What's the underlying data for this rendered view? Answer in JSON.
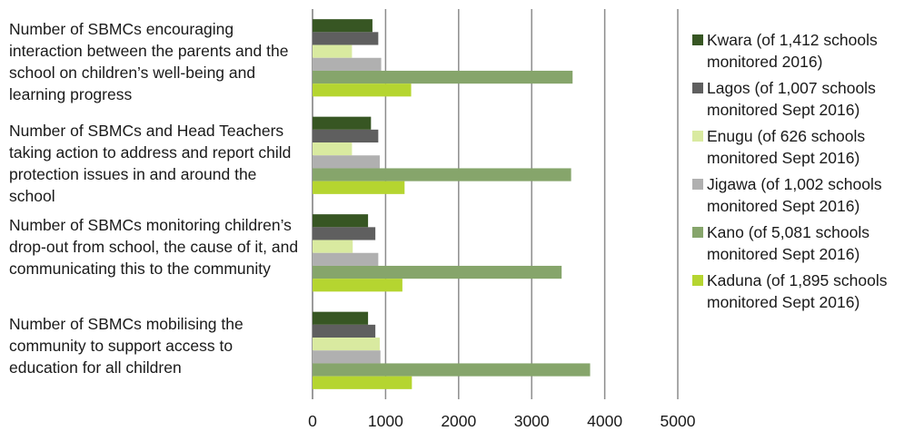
{
  "chart_data": {
    "type": "bar",
    "orientation": "horizontal",
    "categories": [
      "Number of SBMCs encouraging interaction between the parents and the school on children’s well-being and learning progress",
      "Number of SBMCs and Head Teachers taking action to address and report child protection issues in and around the school",
      "Number of SBMCs monitoring children’s drop-out from school, the cause of it, and communicating this to the community",
      "Number of SBMCs mobilising the community to support access to education for all children"
    ],
    "series": [
      {
        "name": "Kwara (of 1,412 schools monitored 2016)",
        "color": "#375623",
        "values": [
          820,
          800,
          760,
          760
        ]
      },
      {
        "name": "Lagos (of 1,007 schools monitored Sept 2016)",
        "color": "#5f5f5f",
        "values": [
          900,
          900,
          860,
          860
        ]
      },
      {
        "name": "Enugu (of 626 schools monitored Sept 2016)",
        "color": "#d9eaa0",
        "values": [
          540,
          540,
          550,
          920
        ]
      },
      {
        "name": "Jigawa (of 1,002 schools monitored Sept 2016)",
        "color": "#b0b0b0",
        "values": [
          940,
          920,
          900,
          930
        ]
      },
      {
        "name": "Kano (of 5,081 schools monitored Sept 2016)",
        "color": "#86a56b",
        "values": [
          3560,
          3540,
          3410,
          3800
        ]
      },
      {
        "name": "Kaduna (of 1,895 schools monitored Sept 2016)",
        "color": "#b5d530",
        "values": [
          1350,
          1260,
          1230,
          1360
        ]
      }
    ],
    "xlim": [
      0,
      5000
    ],
    "x_ticks": [
      "0",
      "1000",
      "2000",
      "3000",
      "4000",
      "5000"
    ],
    "grid": true,
    "legend_position": "right"
  }
}
